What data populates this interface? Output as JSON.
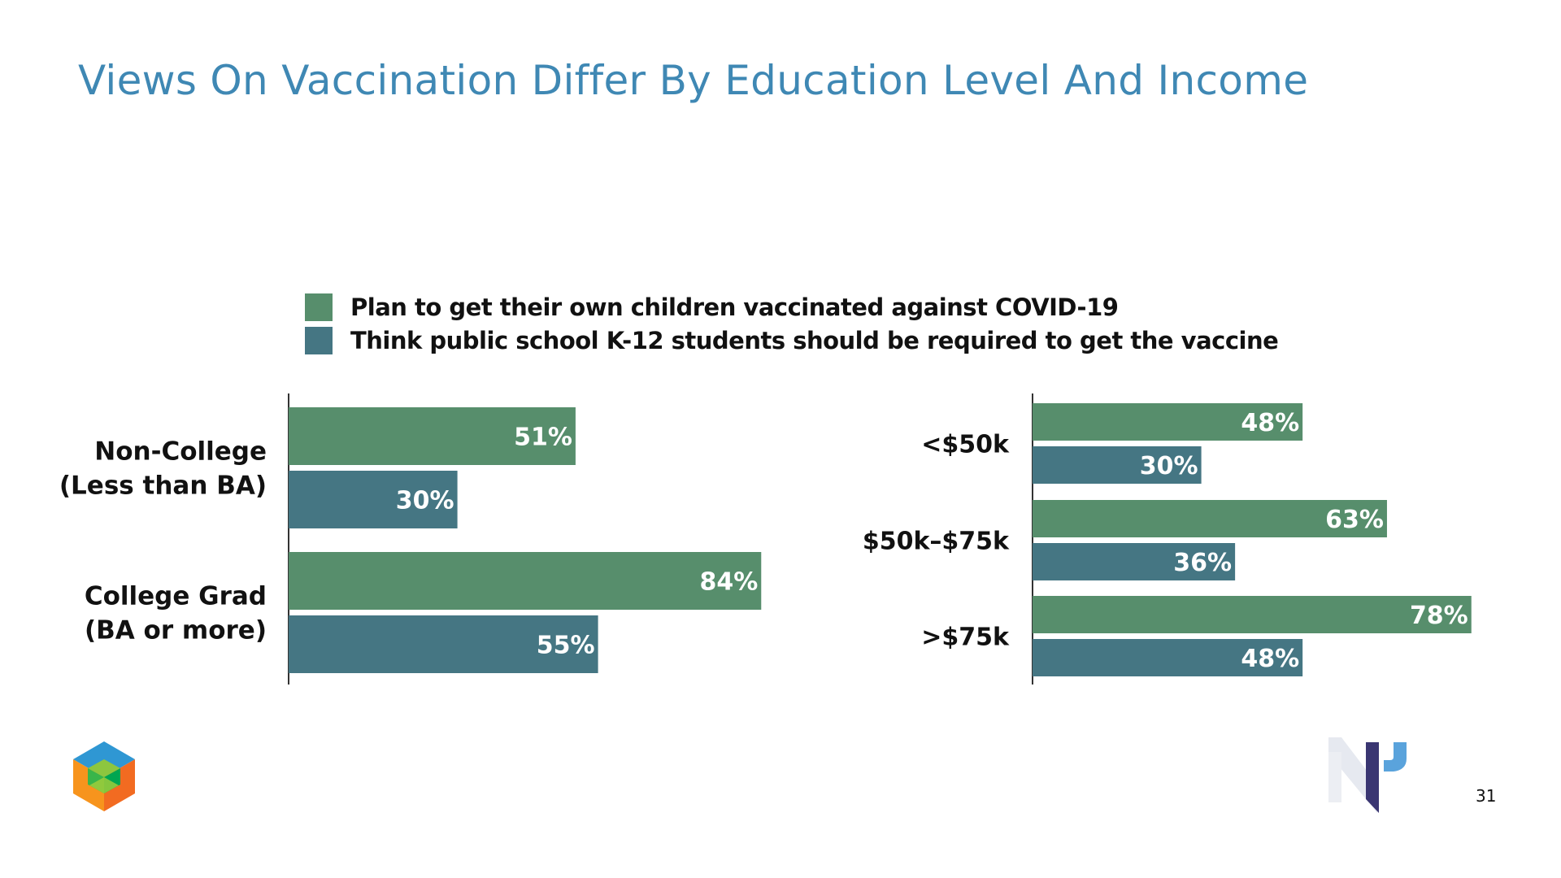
{
  "title": "Views On Vaccination Differ By Education Level And Income",
  "page_number": "31",
  "colors": {
    "title": "#3f88b4",
    "plan": "#578e6c",
    "require": "#457683"
  },
  "legend": [
    {
      "label": "Plan to get their own children vaccinated against COVID-19",
      "color": "#578e6c"
    },
    {
      "label": "Think public school K-12 students should be required to get the vaccine",
      "color": "#457683"
    }
  ],
  "logos": [
    "cube-logo-icon",
    "np-logo-icon"
  ],
  "chart_data": [
    {
      "type": "bar",
      "orientation": "horizontal",
      "categories": [
        "Non-College\n(Less than BA)",
        "College Grad\n(BA or more)"
      ],
      "series": [
        {
          "name": "Plan to get their own children vaccinated against COVID-19",
          "values": [
            51,
            84
          ],
          "labels": [
            "51%",
            "84%"
          ]
        },
        {
          "name": "Think public school K-12 students should be required to get the vaccine",
          "values": [
            30,
            55
          ],
          "labels": [
            "30%",
            "55%"
          ]
        }
      ],
      "xlim": [
        0,
        100
      ],
      "grid": false
    },
    {
      "type": "bar",
      "orientation": "horizontal",
      "categories": [
        "<$50k",
        "$50k–$75k",
        ">$75k"
      ],
      "series": [
        {
          "name": "Plan to get their own children vaccinated against COVID-19",
          "values": [
            48,
            63,
            78
          ],
          "labels": [
            "48%",
            "63%",
            "78%"
          ]
        },
        {
          "name": "Think public school K-12 students should be required to get the vaccine",
          "values": [
            30,
            36,
            48
          ],
          "labels": [
            "30%",
            "36%",
            "48%"
          ]
        }
      ],
      "xlim": [
        0,
        100
      ],
      "grid": false
    }
  ]
}
